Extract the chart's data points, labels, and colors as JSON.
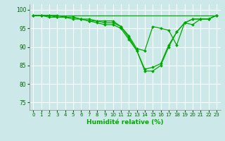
{
  "xlabel": "Humidité relative (%)",
  "ylabel": "",
  "bg_color": "#cce8e8",
  "grid_color": "#ffffff",
  "line_color": "#00aa00",
  "marker_color": "#00aa00",
  "xlim": [
    -0.5,
    23.5
  ],
  "ylim": [
    73,
    101.5
  ],
  "yticks": [
    75,
    80,
    85,
    90,
    95,
    100
  ],
  "xticks": [
    0,
    1,
    2,
    3,
    4,
    5,
    6,
    7,
    8,
    9,
    10,
    11,
    12,
    13,
    14,
    15,
    16,
    17,
    18,
    19,
    20,
    21,
    22,
    23
  ],
  "series": [
    {
      "x": [
        0,
        1,
        2,
        3,
        4,
        5,
        6,
        7,
        8,
        9,
        10,
        11,
        12,
        13,
        14,
        15,
        16,
        17,
        18,
        19,
        20,
        21,
        22,
        23
      ],
      "y": [
        98.5,
        98.5,
        98.5,
        98.5,
        98.5,
        98.5,
        98.5,
        98.5,
        98.5,
        98.5,
        98.5,
        98.5,
        98.5,
        98.5,
        98.5,
        98.5,
        98.5,
        98.5,
        98.5,
        98.5,
        98.5,
        98.5,
        98.5,
        98.5
      ],
      "marker": false
    },
    {
      "x": [
        0,
        1,
        2,
        3,
        4,
        5,
        6,
        7,
        8,
        9,
        10,
        11,
        12,
        13,
        14,
        15,
        16,
        17,
        18,
        19,
        20,
        21,
        22,
        23
      ],
      "y": [
        98.5,
        98.5,
        98.0,
        98.0,
        98.0,
        98.0,
        97.5,
        97.5,
        97.0,
        97.0,
        97.0,
        95.5,
        93.0,
        89.5,
        89.0,
        95.5,
        95.0,
        94.5,
        90.5,
        96.5,
        96.0,
        97.5,
        97.5,
        98.5
      ],
      "marker": true
    },
    {
      "x": [
        0,
        1,
        2,
        3,
        4,
        5,
        6,
        7,
        8,
        9,
        10,
        11,
        12,
        13,
        14,
        15,
        16,
        17,
        18,
        19,
        20,
        21,
        22,
        23
      ],
      "y": [
        98.5,
        98.5,
        98.5,
        98.5,
        98.0,
        98.0,
        97.5,
        97.0,
        97.0,
        96.5,
        96.5,
        95.5,
        92.5,
        89.0,
        84.0,
        84.5,
        85.5,
        90.5,
        94.0,
        96.5,
        97.5,
        97.5,
        97.5,
        98.5
      ],
      "marker": true
    },
    {
      "x": [
        0,
        1,
        2,
        3,
        4,
        5,
        6,
        7,
        8,
        9,
        10,
        11,
        12,
        13,
        14,
        15,
        16,
        17,
        18,
        19,
        20,
        21,
        22,
        23
      ],
      "y": [
        98.5,
        98.5,
        98.5,
        98.0,
        98.0,
        97.5,
        97.5,
        97.0,
        96.5,
        96.0,
        96.0,
        95.0,
        92.0,
        89.0,
        83.5,
        83.5,
        85.0,
        90.0,
        94.0,
        96.5,
        97.5,
        97.5,
        97.5,
        98.5
      ],
      "marker": true
    }
  ]
}
